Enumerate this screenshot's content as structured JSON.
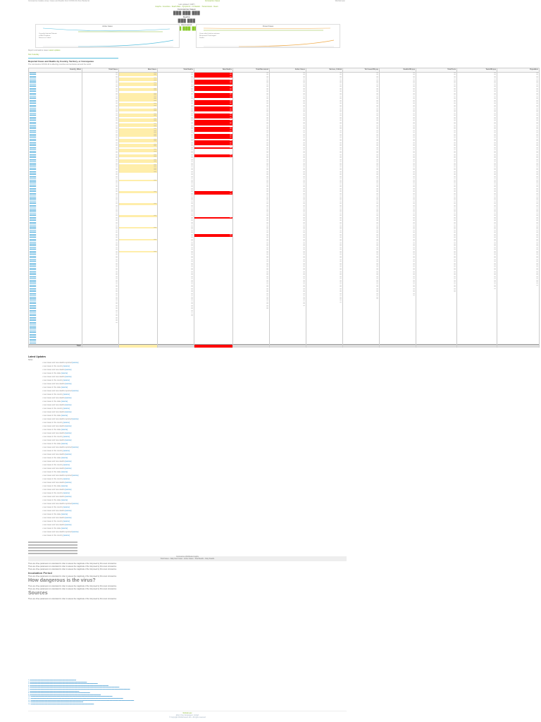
{
  "topbar": {
    "left": "Coronavirus Update (Live): Cases and Deaths from COVID-19 Virus Pandemic",
    "middle": "Coronavirus Cases",
    "right": "Worldometer"
  },
  "header": {
    "updated": "Last updated: (GMT)",
    "links": "Graphs - Countries - Death Rate - Symptoms - Incubation - Transmission - News",
    "subtitle": "Coronavirus Cases:",
    "counters": [
      {
        "label": "Coronavirus Cases:",
        "value": "",
        "style": "gray"
      },
      {
        "label": "Deaths:",
        "value": "",
        "style": "gray"
      },
      {
        "label": "Recovered:",
        "value": "",
        "style": "green"
      }
    ]
  },
  "charts": [
    {
      "title": "Active Cases",
      "legend": [
        "Currently Infected Patients",
        "in Mild Condition",
        "Serious or Critical"
      ],
      "color": "#5bc0de"
    },
    {
      "title": "Closed Cases",
      "legend": [
        "Cases which had an outcome",
        "Recovered / Discharged",
        "Deaths"
      ],
      "color": "#f0ad4e"
    }
  ],
  "below_charts": {
    "text": "Report coronavirus cases",
    "link": "Latest updates"
  },
  "tabs": {
    "now": "Now",
    "yesterday": "Yesterday"
  },
  "table": {
    "title": "Reported Cases and Deaths by Country, Territory, or Conveyance",
    "subtitle": "The coronavirus COVID-19 is affecting countries and territories around the world.",
    "columns": [
      "Country, Other",
      "Total Cases",
      "New Cases",
      "Total Deaths",
      "New Deaths",
      "Total Recovered",
      "Active Cases",
      "Serious, Critical",
      "Tot Cases/1M pop",
      "Deaths/1M pop",
      "Total Tests",
      "Tests/1M pop",
      "Population"
    ],
    "row_count": 200,
    "total_label": "Total:"
  },
  "notes": {
    "heading": "Latest Updates",
    "subheading": "Notes",
    "items": [
      "new cases and new deaths reported",
      "new cases in the country",
      "new cases and new deaths",
      "new cases in the state",
      "new cases and new deaths",
      "new cases in the country",
      "new cases and new deaths",
      "new cases in the state"
    ],
    "source_label": "[source]"
  },
  "article": {
    "band_title": "Coronavirus Worldwide Graphs",
    "band_links": "Total Cases - Daily New Cases - Active Cases - Total Deaths - Daily Deaths",
    "heading_big_1": "Sources",
    "heading_big_2": "How dangerous is the virus?",
    "heading_mid": "Incubation Period",
    "paragraph": "There are three parameters to understand in order to assess the magnitude of the risk posed by this novel coronavirus."
  },
  "references": {
    "count": 14,
    "label": "Sources"
  },
  "footer": {
    "line1": "Worldometer",
    "line2": "about | faq | languages | contact",
    "line3": "© Copyright Worldometers.info - All rights reserved"
  }
}
